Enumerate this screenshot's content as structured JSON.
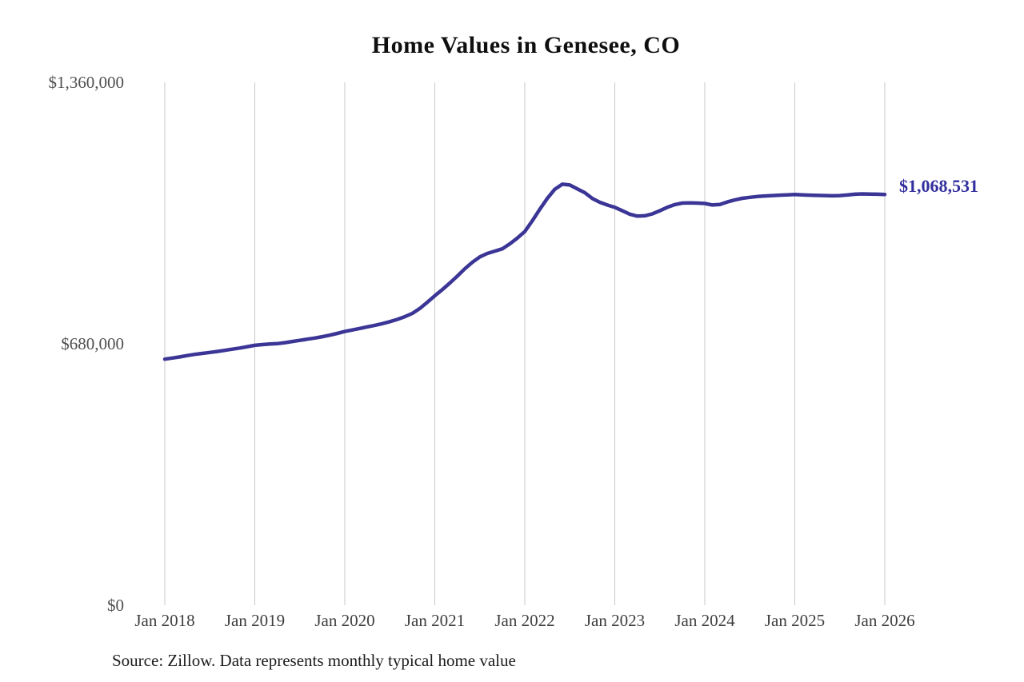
{
  "title": "Home Values in Genesee, CO",
  "source": "Source: Zillow. Data represents monthly typical home value",
  "end_label": {
    "text": "$1,068,531",
    "value": 1068531
  },
  "y_axis": {
    "labels": [
      {
        "text": "$1,360,000",
        "value": 1360000
      },
      {
        "text": "$680,000",
        "value": 680000
      },
      {
        "text": "$0",
        "value": 0
      }
    ]
  },
  "x_axis": {
    "ticks": [
      "Jan 2018",
      "Jan 2019",
      "Jan 2020",
      "Jan 2021",
      "Jan 2022",
      "Jan 2023",
      "Jan 2024",
      "Jan 2025",
      "Jan 2026"
    ]
  },
  "colors": {
    "line": "#3b3596",
    "end_label": "#322f9d",
    "grid": "#c8c8c8",
    "y_label_text": "#4f4f4f",
    "x_label_text": "#3e3e3e",
    "title_text": "#0f0f0f",
    "background": "#ffffff"
  },
  "chart_data": {
    "type": "line",
    "title": "Home Values in Genesee, CO",
    "xlabel": "",
    "ylabel": "",
    "ylim": [
      0,
      1360000
    ],
    "grid": "vertical-only",
    "legend": "none",
    "x_start": "Jan 2018",
    "x_end": "Jan 2026",
    "x_frequency": "monthly",
    "x_tick_labels": [
      "Jan 2018",
      "Jan 2019",
      "Jan 2020",
      "Jan 2021",
      "Jan 2022",
      "Jan 2023",
      "Jan 2024",
      "Jan 2025",
      "Jan 2026"
    ],
    "y_tick_labels": [
      "$0",
      "$680,000",
      "$1,360,000"
    ],
    "annotation_last_point": "$1,068,531",
    "series": [
      {
        "name": "Monthly typical home value",
        "values": [
          640000,
          643000,
          646000,
          649500,
          652500,
          655000,
          657500,
          660000,
          663000,
          666000,
          669000,
          672500,
          676000,
          678000,
          679500,
          680500,
          683000,
          686000,
          689000,
          692000,
          695000,
          698500,
          702500,
          707000,
          712000,
          716000,
          720000,
          724000,
          728000,
          732500,
          737500,
          743500,
          750500,
          759000,
          772000,
          788000,
          805000,
          821000,
          838000,
          856000,
          875000,
          892000,
          906000,
          915000,
          921000,
          927000,
          940000,
          955000,
          972000,
          1000000,
          1030000,
          1058000,
          1082000,
          1095000,
          1093000,
          1083000,
          1073000,
          1058000,
          1048000,
          1041000,
          1035000,
          1026000,
          1017000,
          1012000,
          1013000,
          1018000,
          1026000,
          1035000,
          1042000,
          1046000,
          1046500,
          1046000,
          1045000,
          1041000,
          1042500,
          1049000,
          1054000,
          1058500,
          1061000,
          1063000,
          1064500,
          1065500,
          1066500,
          1067500,
          1068500,
          1067500,
          1066500,
          1066000,
          1065500,
          1065000,
          1065500,
          1067000,
          1069000,
          1070000,
          1069500,
          1069000,
          1068531
        ]
      }
    ]
  }
}
